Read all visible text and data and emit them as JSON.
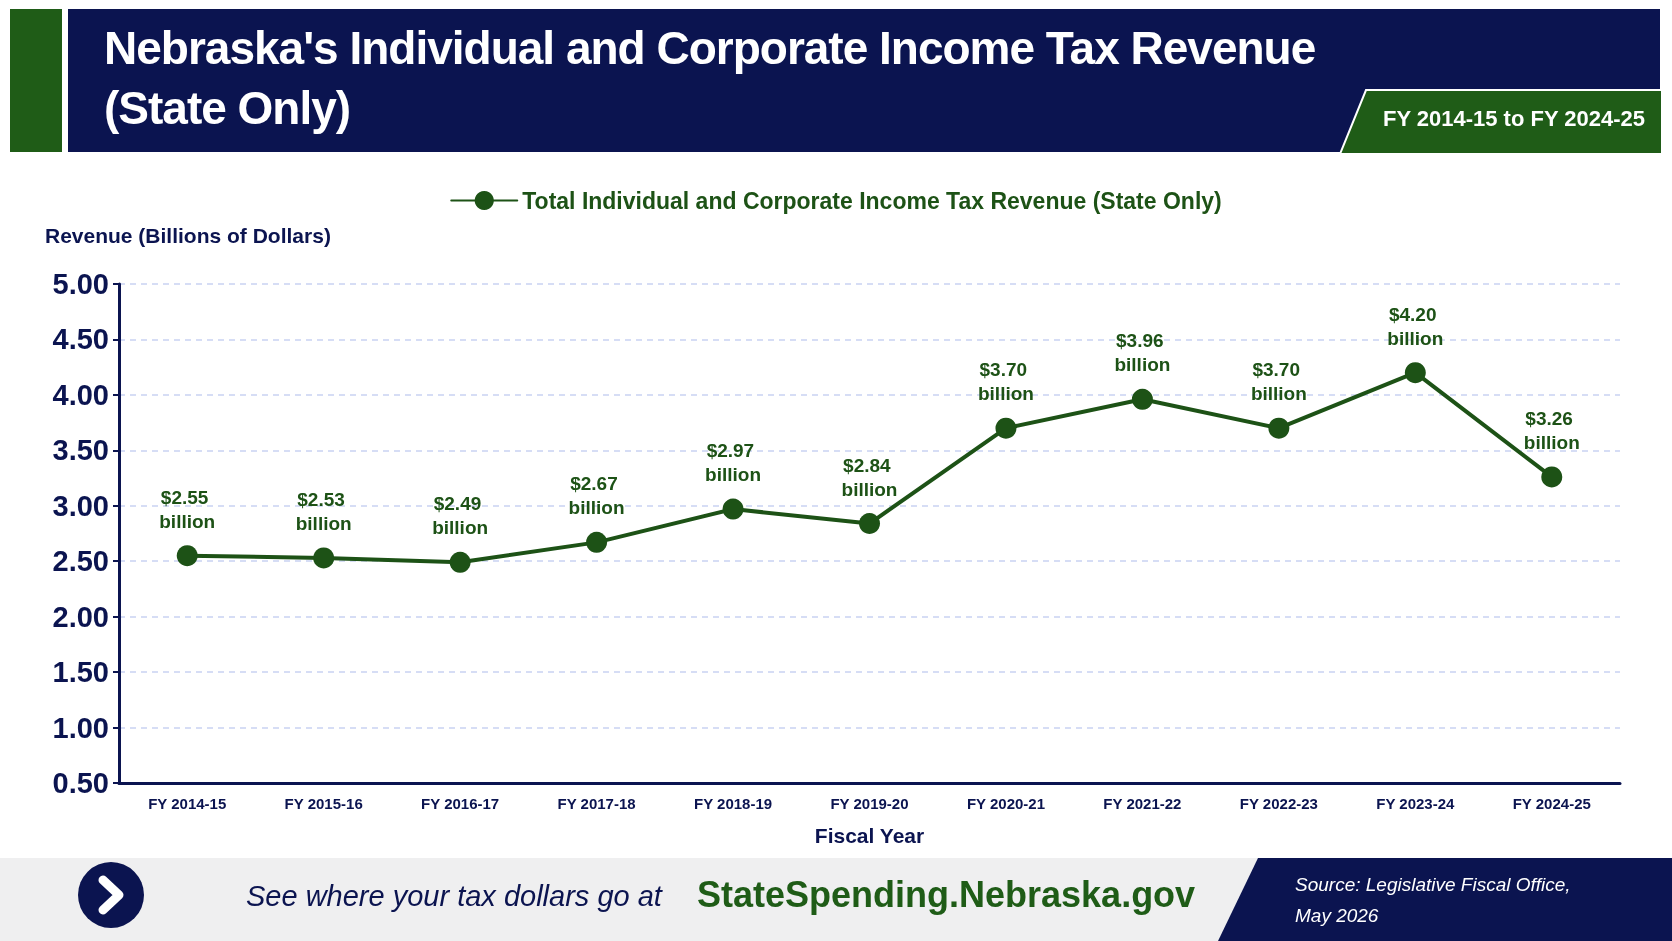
{
  "chart_data": {
    "type": "line",
    "title": "Nebraska's Individual and Corporate Income Tax Revenue (State Only)",
    "subtitle": "FY 2014-15 to FY 2024-25",
    "xlabel": "Fiscal Year",
    "ylabel": "Revenue (Billions of Dollars)",
    "categories": [
      "FY 2014-15",
      "FY 2015-16",
      "FY 2016-17",
      "FY 2017-18",
      "FY 2018-19",
      "FY 2019-20",
      "FY 2020-21",
      "FY 2021-22",
      "FY 2022-23",
      "FY 2023-24",
      "FY 2024-25"
    ],
    "series": [
      {
        "name": "Total Individual and Corporate Income Tax Revenue (State Only)",
        "color": "#1d5216",
        "values": [
          2.55,
          2.53,
          2.49,
          2.67,
          2.97,
          2.84,
          3.7,
          3.96,
          3.7,
          4.2,
          3.26
        ],
        "value_labels": [
          "$2.55 billion",
          "$2.53 billion",
          "$2.49 billion",
          "$2.67 billion",
          "$2.97 billion",
          "$2.84 billion",
          "$3.70 billion",
          "$3.96 billion",
          "$3.70 billion",
          "$4.20 billion",
          "$3.26 billion"
        ]
      }
    ],
    "ylim": [
      0.5,
      5
    ],
    "yticks": [
      {
        "value": 0.5,
        "label": "0.50"
      },
      {
        "value": 1,
        "label": "1.00"
      },
      {
        "value": 1.5,
        "label": "1.50"
      },
      {
        "value": 2,
        "label": "2.00"
      },
      {
        "value": 2.5,
        "label": "2.50"
      },
      {
        "value": 3,
        "label": "3.00"
      },
      {
        "value": 3.5,
        "label": "3.50"
      },
      {
        "value": 4,
        "label": "4.00"
      },
      {
        "value": 4.5,
        "label": "4.50"
      },
      {
        "value": 5,
        "label": "5.00"
      }
    ],
    "grid": "y",
    "legend": "top",
    "marker": "circle",
    "line_style": "solid",
    "annotations": [
      "See where your tax dollars go at",
      "StateSpending.Nebraska.gov",
      "Source: Legislative Fiscal Office, May 2026"
    ]
  }
}
